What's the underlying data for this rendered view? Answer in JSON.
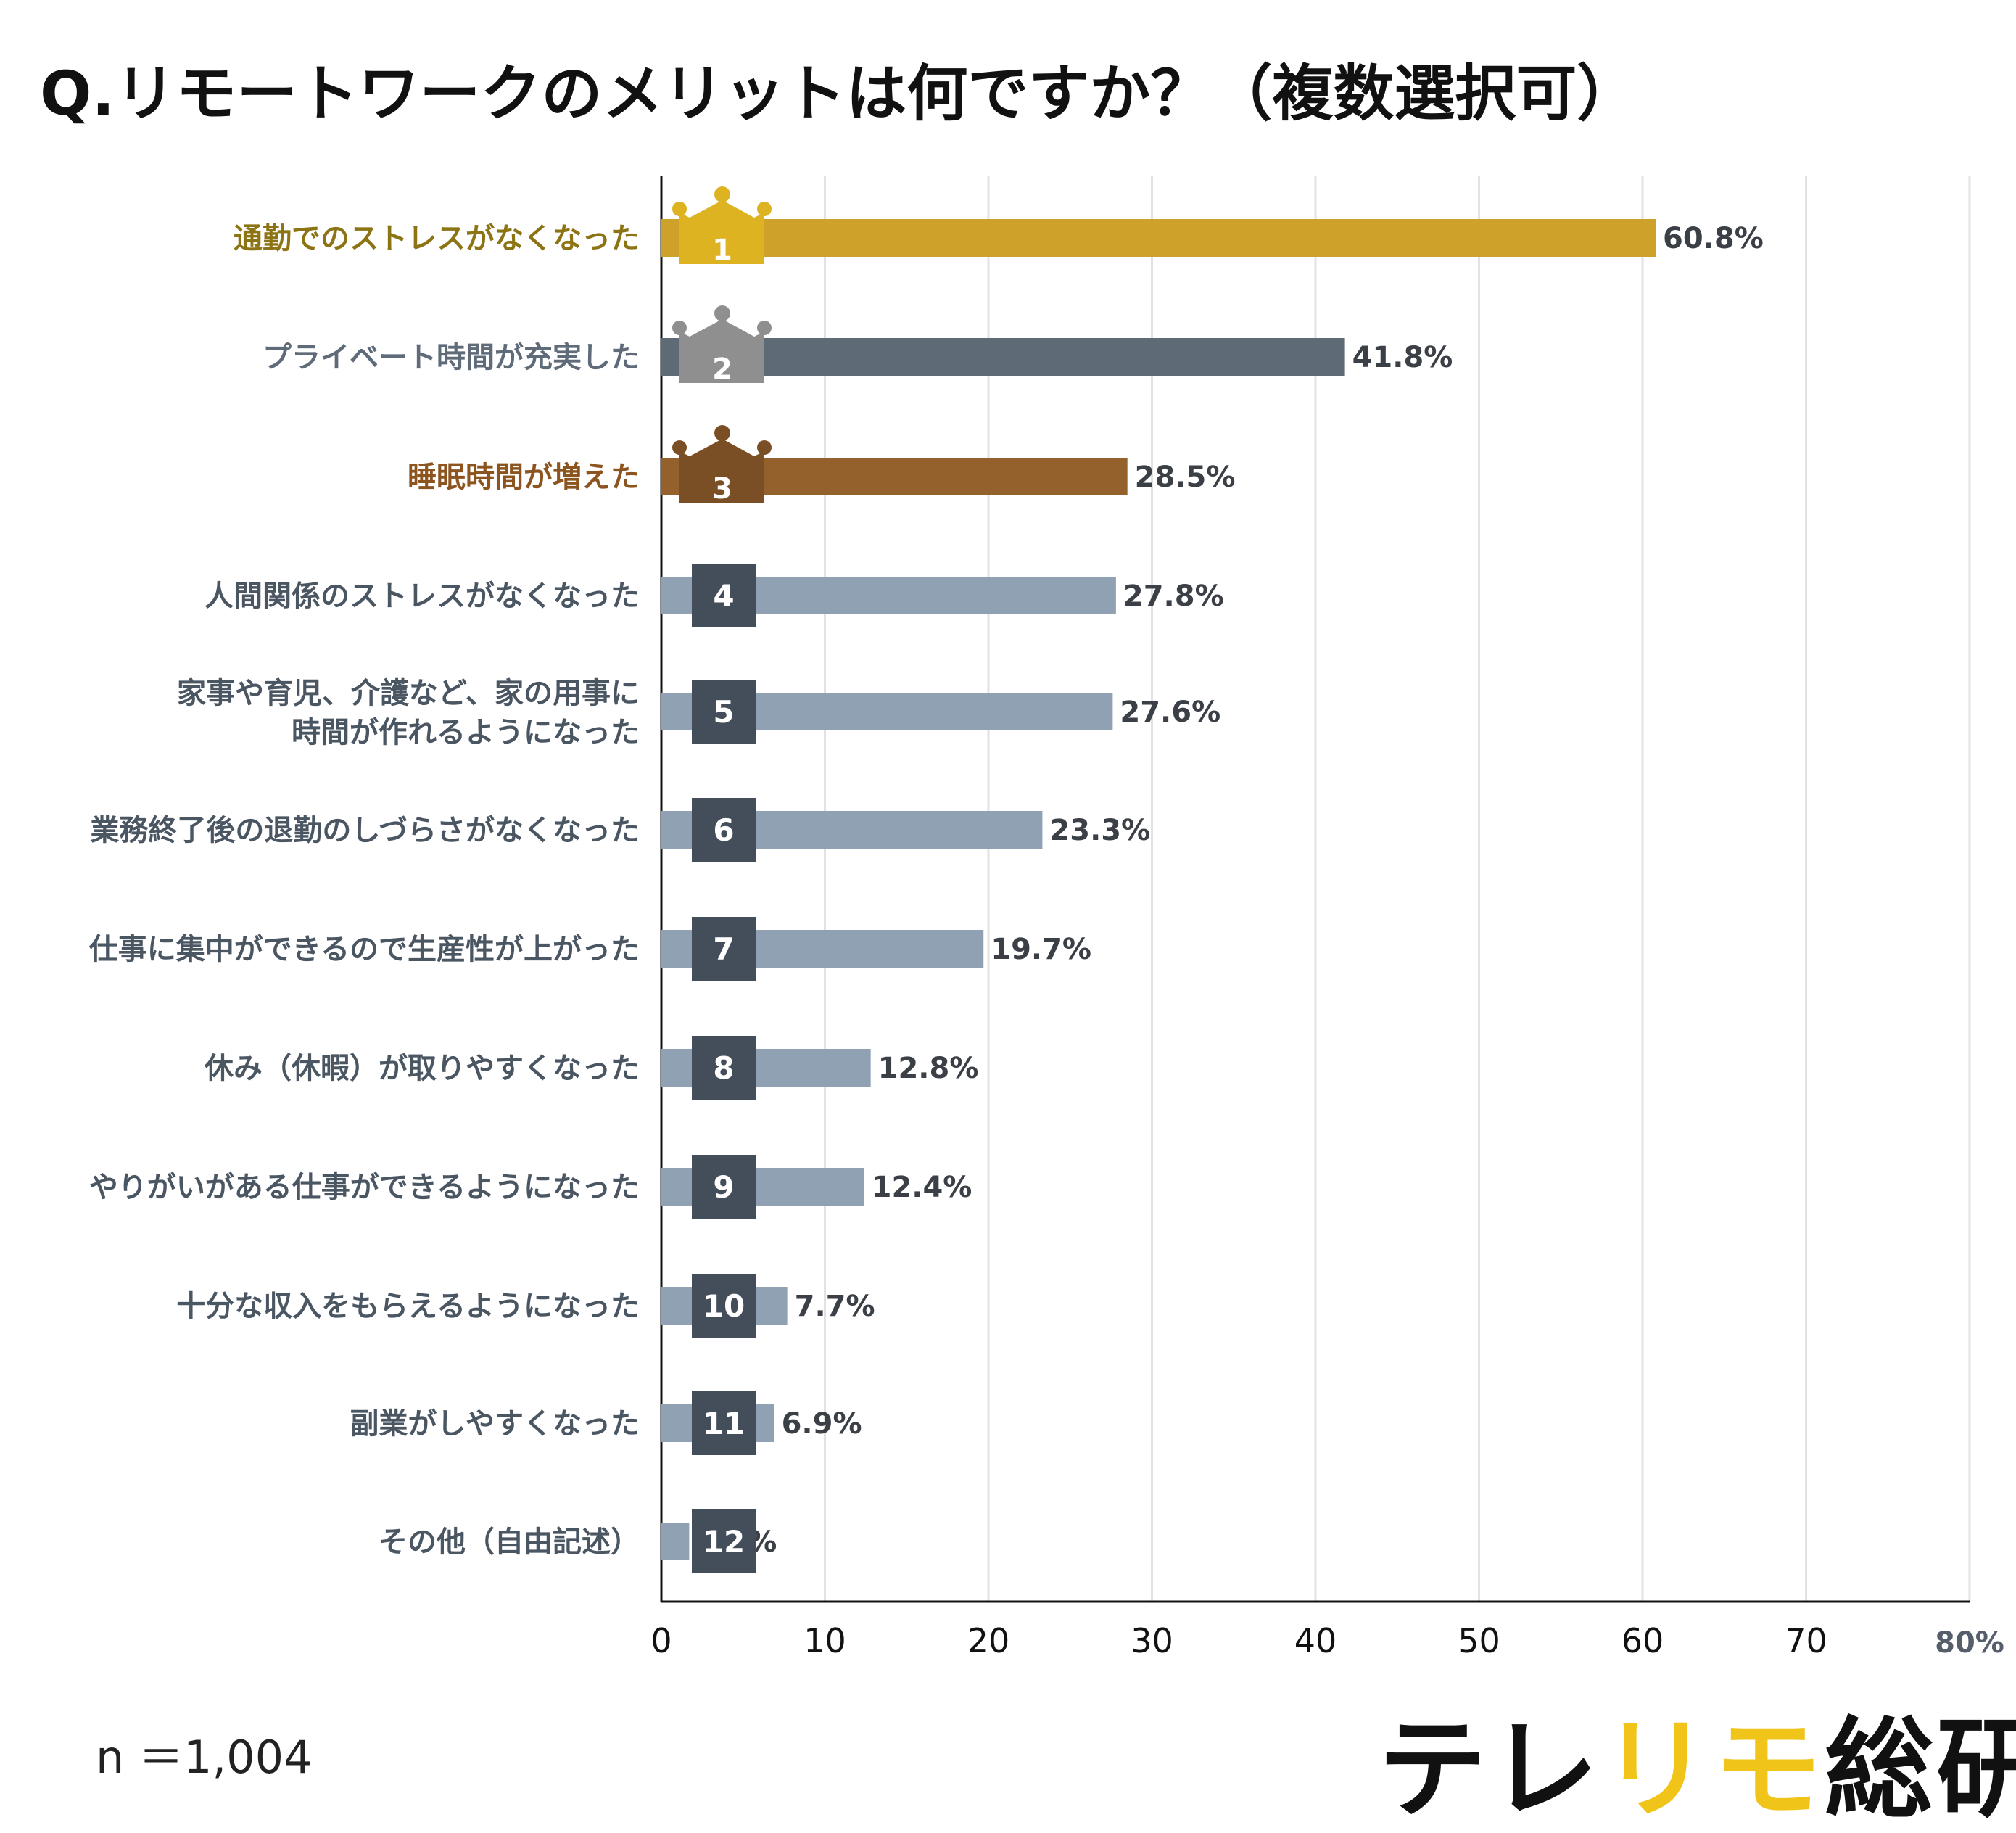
{
  "title": "Q.リモートワークのメリットは何ですか？（複数選択可）",
  "sample_size": "n ＝1,004",
  "brand": {
    "part1": "テレ",
    "part2": "リモ",
    "part3": "総研"
  },
  "colors": {
    "gold": "#cda12a",
    "gold_text": "#8c7415",
    "gold_crown": "#ddb321",
    "silver": "#5e6b77",
    "silver_text": "#5f6b78",
    "silver_crown": "#8f8f8f",
    "bronze": "#94612c",
    "bronze_text": "#8c5520",
    "bronze_crown": "#7b4f25",
    "default_bar": "#8fa1b3",
    "default_text": "#4b5663",
    "badge": "#444e5b",
    "axis": "#111111",
    "grid": "#e2e2e2"
  },
  "chart_data": {
    "type": "bar",
    "orientation": "horizontal",
    "title": "Q.リモートワークのメリットは何ですか？（複数選択可）",
    "xlabel": "",
    "ylabel": "",
    "xlim": [
      0,
      80
    ],
    "x_ticks": [
      "0",
      "10",
      "20",
      "30",
      "40",
      "50",
      "60",
      "70",
      "80%"
    ],
    "grid": true,
    "categories": [
      "通勤でのストレスがなくなった",
      "プライベート時間が充実した",
      "睡眠時間が増えた",
      "人間関係のストレスがなくなった",
      "家事や育児、介護など、家の用事に|時間が作れるようになった",
      "業務終了後の退勤のしづらさがなくなった",
      "仕事に集中ができるので生産性が上がった",
      "休み（休暇）が取りやすくなった",
      "やりがいがある仕事ができるようになった",
      "十分な収入をもらえるようになった",
      "副業がしやすくなった",
      "その他（自由記述）"
    ],
    "values": [
      60.8,
      41.8,
      28.5,
      27.8,
      27.6,
      23.3,
      19.7,
      12.8,
      12.4,
      7.7,
      6.9,
      1.7
    ],
    "data_labels": [
      "60.8%",
      "41.8%",
      "28.5%",
      "27.8%",
      "27.6%",
      "23.3%",
      "19.7%",
      "12.8%",
      "12.4%",
      "7.7%",
      "6.9%",
      "1.7%"
    ],
    "ranks": [
      "1",
      "2",
      "3",
      "4",
      "5",
      "6",
      "7",
      "8",
      "9",
      "10",
      "11",
      "12"
    ]
  }
}
